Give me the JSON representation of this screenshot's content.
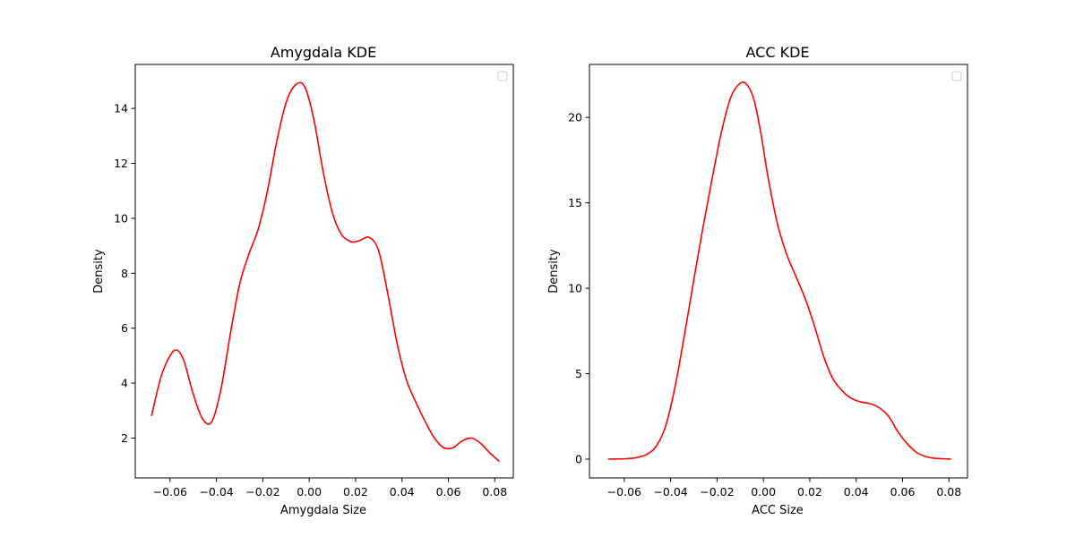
{
  "chart_data": [
    {
      "type": "line",
      "title": "Amygdala KDE",
      "xlabel": "Amygdala Size",
      "ylabel": "Density",
      "xlim": [
        -0.075,
        0.088
      ],
      "ylim": [
        0.55,
        15.6
      ],
      "xticks": [
        -0.06,
        -0.04,
        -0.02,
        0.0,
        0.02,
        0.04,
        0.06,
        0.08
      ],
      "xtick_labels": [
        "−0.06",
        "−0.04",
        "−0.02",
        "0.00",
        "0.02",
        "0.04",
        "0.06",
        "0.08"
      ],
      "yticks": [
        2,
        4,
        6,
        8,
        10,
        12,
        14
      ],
      "ytick_labels": [
        "2",
        "4",
        "6",
        "8",
        "10",
        "12",
        "14"
      ],
      "legend": {
        "placement": "upper right",
        "entries": []
      },
      "grid": false,
      "color": "#ff0000",
      "series": [
        {
          "x": [
            -0.068,
            -0.064,
            -0.06,
            -0.057,
            -0.054,
            -0.05,
            -0.046,
            -0.042,
            -0.038,
            -0.034,
            -0.03,
            -0.026,
            -0.022,
            -0.018,
            -0.014,
            -0.01,
            -0.006,
            -0.002,
            0.002,
            0.006,
            0.01,
            0.014,
            0.018,
            0.02,
            0.022,
            0.026,
            0.03,
            0.034,
            0.038,
            0.042,
            0.046,
            0.05,
            0.054,
            0.058,
            0.062,
            0.066,
            0.07,
            0.074,
            0.078,
            0.082
          ],
          "y": [
            2.8,
            4.2,
            5.0,
            5.2,
            4.8,
            3.6,
            2.7,
            2.6,
            3.8,
            5.8,
            7.6,
            8.7,
            9.6,
            11.0,
            12.8,
            14.2,
            14.85,
            14.8,
            13.6,
            11.7,
            10.2,
            9.4,
            9.15,
            9.15,
            9.2,
            9.3,
            8.8,
            7.2,
            5.4,
            4.1,
            3.3,
            2.6,
            2.0,
            1.65,
            1.65,
            1.9,
            2.0,
            1.8,
            1.45,
            1.15
          ]
        }
      ]
    },
    {
      "type": "line",
      "title": "ACC KDE",
      "xlabel": "ACC Size",
      "ylabel": "Density",
      "xlim": [
        -0.075,
        0.088
      ],
      "ylim": [
        -1.1,
        23.1
      ],
      "xticks": [
        -0.06,
        -0.04,
        -0.02,
        0.0,
        0.02,
        0.04,
        0.06,
        0.08
      ],
      "xtick_labels": [
        "−0.06",
        "−0.04",
        "−0.02",
        "0.00",
        "0.02",
        "0.04",
        "0.06",
        "0.08"
      ],
      "yticks": [
        0,
        5,
        10,
        15,
        20
      ],
      "ytick_labels": [
        "0",
        "5",
        "10",
        "15",
        "20"
      ],
      "legend": {
        "placement": "upper right",
        "entries": []
      },
      "grid": false,
      "color": "#ff0000",
      "series": [
        {
          "x": [
            -0.067,
            -0.06,
            -0.055,
            -0.05,
            -0.046,
            -0.042,
            -0.038,
            -0.034,
            -0.03,
            -0.026,
            -0.022,
            -0.018,
            -0.014,
            -0.01,
            -0.007,
            -0.004,
            -0.001,
            0.002,
            0.006,
            0.01,
            0.014,
            0.018,
            0.022,
            0.026,
            0.03,
            0.034,
            0.038,
            0.042,
            0.046,
            0.05,
            0.054,
            0.058,
            0.062,
            0.066,
            0.07,
            0.074,
            0.078,
            0.081
          ],
          "y": [
            0.0,
            0.02,
            0.08,
            0.3,
            0.8,
            2.0,
            4.3,
            7.3,
            10.5,
            13.6,
            16.5,
            19.2,
            21.2,
            22.0,
            21.9,
            21.0,
            19.0,
            16.5,
            13.8,
            12.0,
            10.7,
            9.4,
            7.8,
            6.0,
            4.7,
            4.0,
            3.55,
            3.35,
            3.25,
            3.0,
            2.5,
            1.6,
            0.9,
            0.4,
            0.15,
            0.05,
            0.02,
            0.0
          ]
        }
      ]
    }
  ]
}
